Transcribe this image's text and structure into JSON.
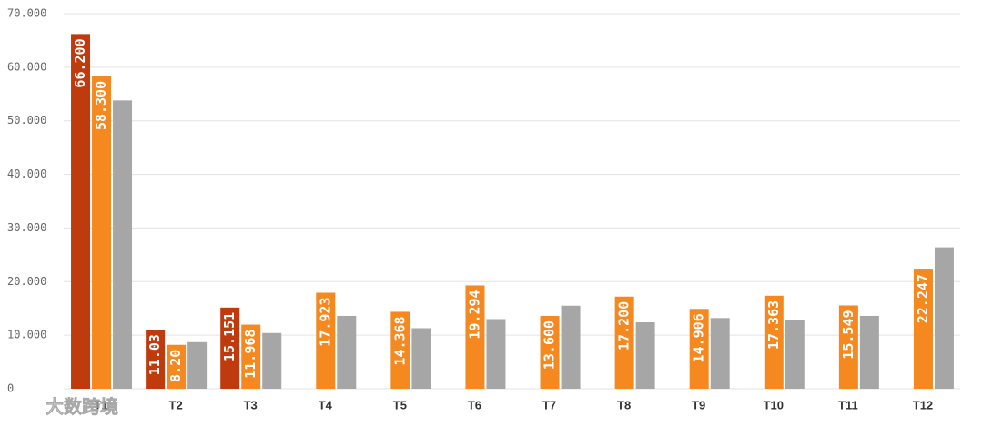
{
  "chart_data": {
    "type": "bar",
    "categories": [
      "T1",
      "T2",
      "T3",
      "T4",
      "T5",
      "T6",
      "T7",
      "T8",
      "T9",
      "T10",
      "T11",
      "T12"
    ],
    "series": [
      {
        "color": "#bf3a0c",
        "values": [
          66.2,
          11.03,
          15.151,
          null,
          null,
          null,
          null,
          null,
          null,
          null,
          null,
          null
        ],
        "value_labels": [
          "66.200",
          "11.03",
          "15.151",
          null,
          null,
          null,
          null,
          null,
          null,
          null,
          null,
          null
        ]
      },
      {
        "color": "#f5891f",
        "values": [
          58.3,
          8.2,
          11.968,
          17.923,
          14.368,
          19.294,
          13.6,
          17.2,
          14.906,
          17.363,
          15.549,
          22.247
        ],
        "value_labels": [
          "58.300",
          "8.20",
          "11.968",
          "17.923",
          "14.368",
          "19.294",
          "13.600",
          "17.200",
          "14.906",
          "17.363",
          "15.549",
          "22.247"
        ]
      },
      {
        "color": "#a6a6a6",
        "values": [
          53.8,
          8.7,
          10.4,
          13.6,
          11.3,
          13.0,
          15.5,
          12.4,
          13.2,
          12.8,
          13.6,
          26.4
        ]
      }
    ],
    "ylim": [
      0,
      70
    ],
    "yticks": [
      0,
      {
        "value": 10,
        "label": "10.000"
      },
      {
        "value": 20,
        "label": "20.000"
      },
      {
        "value": 30,
        "label": "30.000"
      },
      {
        "value": 40,
        "label": "40.000"
      },
      {
        "value": 50,
        "label": "50.000"
      },
      {
        "value": 60,
        "label": "60.000"
      },
      {
        "value": 70,
        "label": "70.000"
      }
    ],
    "grid": true,
    "watermark": "大数跨境"
  }
}
